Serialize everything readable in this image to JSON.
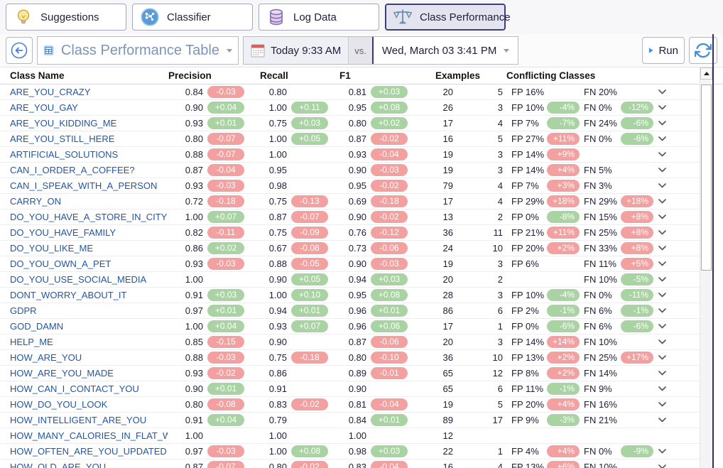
{
  "tabs": [
    {
      "label": "Suggestions",
      "icon": "lightbulb-icon",
      "selected": false
    },
    {
      "label": "Classifier",
      "icon": "network-icon",
      "selected": false
    },
    {
      "label": "Log Data",
      "icon": "database-icon",
      "selected": false
    },
    {
      "label": "Class Performance",
      "icon": "scales-icon",
      "selected": true
    }
  ],
  "toolbar": {
    "view_label": "Class Performance Table",
    "date_left": "Today 9:33 AM",
    "vs_label": "vs.",
    "date_right": "Wed, March 03 3:41 PM",
    "run_label": "Run"
  },
  "colors": {
    "badge_red": "#f2a0a0",
    "badge_green": "#a9d3a3",
    "link_blue": "#2057a7",
    "accent_blue": "#4a90d9",
    "selected_tab_bg": "#e4e3f0",
    "window_border": "#2e2e70"
  },
  "table": {
    "columns": [
      "Class Name",
      "Precision",
      "Recall",
      "F1",
      "Examples",
      "Conflicting Classes"
    ],
    "rows": [
      {
        "name": "ARE_YOU_CRAZY",
        "precision": "0.84",
        "precision_delta": "-0.03",
        "recall": "0.80",
        "recall_delta": null,
        "f1": "0.81",
        "f1_delta": "+0.03",
        "examples": "20",
        "conflicts": "5",
        "fp": "FP 16%",
        "fp_delta": null,
        "fn": "FN 20%",
        "fn_delta": null,
        "chevron": true
      },
      {
        "name": "ARE_YOU_GAY",
        "precision": "0.90",
        "precision_delta": "+0.04",
        "recall": "1.00",
        "recall_delta": "+0.11",
        "f1": "0.95",
        "f1_delta": "+0.08",
        "examples": "26",
        "conflicts": "3",
        "fp": "FP 10%",
        "fp_delta": "-4%",
        "fn": "FN 0%",
        "fn_delta": "-12%",
        "chevron": true
      },
      {
        "name": "ARE_YOU_KIDDING_ME",
        "precision": "0.93",
        "precision_delta": "+0.01",
        "recall": "0.75",
        "recall_delta": "+0.03",
        "f1": "0.80",
        "f1_delta": "+0.02",
        "examples": "17",
        "conflicts": "4",
        "fp": "FP 7%",
        "fp_delta": "-7%",
        "fn": "FN 24%",
        "fn_delta": "-6%",
        "chevron": true
      },
      {
        "name": "ARE_YOU_STILL_HERE",
        "precision": "0.80",
        "precision_delta": "-0.07",
        "recall": "1.00",
        "recall_delta": "+0.05",
        "f1": "0.87",
        "f1_delta": "-0.02",
        "examples": "16",
        "conflicts": "5",
        "fp": "FP 27%",
        "fp_delta": "+11%",
        "fn": "FN 0%",
        "fn_delta": "-6%",
        "chevron": true
      },
      {
        "name": "ARTIFICIAL_SOLUTIONS",
        "precision": "0.88",
        "precision_delta": "-0.07",
        "recall": "1.00",
        "recall_delta": null,
        "f1": "0.93",
        "f1_delta": "-0.04",
        "examples": "19",
        "conflicts": "3",
        "fp": "FP 14%",
        "fp_delta": "+9%",
        "fn": null,
        "fn_delta": null,
        "chevron": true
      },
      {
        "name": "CAN_I_ORDER_A_COFFEE?",
        "precision": "0.87",
        "precision_delta": "-0.04",
        "recall": "0.95",
        "recall_delta": null,
        "f1": "0.90",
        "f1_delta": "-0.03",
        "examples": "19",
        "conflicts": "3",
        "fp": "FP 14%",
        "fp_delta": "+4%",
        "fn": "FN 5%",
        "fn_delta": null,
        "chevron": true
      },
      {
        "name": "CAN_I_SPEAK_WITH_A_PERSON",
        "precision": "0.93",
        "precision_delta": "-0.03",
        "recall": "0.98",
        "recall_delta": null,
        "f1": "0.95",
        "f1_delta": "-0.02",
        "examples": "79",
        "conflicts": "4",
        "fp": "FP 7%",
        "fp_delta": "+3%",
        "fn": "FN 3%",
        "fn_delta": null,
        "chevron": true
      },
      {
        "name": "CARRY_ON",
        "precision": "0.72",
        "precision_delta": "-0.18",
        "recall": "0.75",
        "recall_delta": "-0.13",
        "f1": "0.69",
        "f1_delta": "-0.18",
        "examples": "17",
        "conflicts": "4",
        "fp": "FP 29%",
        "fp_delta": "+18%",
        "fn": "FN 29%",
        "fn_delta": "+18%",
        "chevron": true
      },
      {
        "name": "DO_YOU_HAVE_A_STORE_IN_CITY?",
        "precision": "1.00",
        "precision_delta": "+0.07",
        "recall": "0.87",
        "recall_delta": "-0.07",
        "f1": "0.90",
        "f1_delta": "-0.02",
        "examples": "13",
        "conflicts": "2",
        "fp": "FP 0%",
        "fp_delta": "-8%",
        "fn": "FN 15%",
        "fn_delta": "+8%",
        "chevron": true
      },
      {
        "name": "DO_YOU_HAVE_FAMILY",
        "precision": "0.82",
        "precision_delta": "-0.11",
        "recall": "0.75",
        "recall_delta": "-0.09",
        "f1": "0.76",
        "f1_delta": "-0.12",
        "examples": "36",
        "conflicts": "11",
        "fp": "FP 21%",
        "fp_delta": "+11%",
        "fn": "FN 25%",
        "fn_delta": "+8%",
        "chevron": true
      },
      {
        "name": "DO_YOU_LIKE_ME",
        "precision": "0.86",
        "precision_delta": "+0.02",
        "recall": "0.67",
        "recall_delta": "-0.08",
        "f1": "0.73",
        "f1_delta": "-0.06",
        "examples": "24",
        "conflicts": "10",
        "fp": "FP 20%",
        "fp_delta": "+2%",
        "fn": "FN 33%",
        "fn_delta": "+8%",
        "chevron": true
      },
      {
        "name": "DO_YOU_OWN_A_PET",
        "precision": "0.93",
        "precision_delta": "-0.03",
        "recall": "0.88",
        "recall_delta": "-0.05",
        "f1": "0.90",
        "f1_delta": "-0.03",
        "examples": "19",
        "conflicts": "3",
        "fp": "FP 6%",
        "fp_delta": null,
        "fn": "FN 11%",
        "fn_delta": "+5%",
        "chevron": true
      },
      {
        "name": "DO_YOU_USE_SOCIAL_MEDIA",
        "precision": "1.00",
        "precision_delta": null,
        "recall": "0.90",
        "recall_delta": "+0.05",
        "f1": "0.94",
        "f1_delta": "+0.03",
        "examples": "20",
        "conflicts": "2",
        "fp": null,
        "fp_delta": null,
        "fn": "FN 10%",
        "fn_delta": "-5%",
        "chevron": true
      },
      {
        "name": "DONT_WORRY_ABOUT_IT",
        "precision": "0.91",
        "precision_delta": "+0.03",
        "recall": "1.00",
        "recall_delta": "+0.10",
        "f1": "0.95",
        "f1_delta": "+0.08",
        "examples": "28",
        "conflicts": "3",
        "fp": "FP 10%",
        "fp_delta": "-4%",
        "fn": "FN 0%",
        "fn_delta": "-11%",
        "chevron": true
      },
      {
        "name": "GDPR",
        "precision": "0.97",
        "precision_delta": "+0.01",
        "recall": "0.94",
        "recall_delta": "+0.01",
        "f1": "0.96",
        "f1_delta": "+0.01",
        "examples": "86",
        "conflicts": "6",
        "fp": "FP 2%",
        "fp_delta": "-1%",
        "fn": "FN 6%",
        "fn_delta": "-1%",
        "chevron": true
      },
      {
        "name": "GOD_DAMN",
        "precision": "1.00",
        "precision_delta": "+0.04",
        "recall": "0.93",
        "recall_delta": "+0.07",
        "f1": "0.96",
        "f1_delta": "+0.06",
        "examples": "17",
        "conflicts": "1",
        "fp": "FP 0%",
        "fp_delta": "-6%",
        "fn": "FN 6%",
        "fn_delta": "-6%",
        "chevron": true
      },
      {
        "name": "HELP_ME",
        "precision": "0.85",
        "precision_delta": "-0.15",
        "recall": "0.90",
        "recall_delta": null,
        "f1": "0.87",
        "f1_delta": "-0.06",
        "examples": "20",
        "conflicts": "3",
        "fp": "FP 14%",
        "fp_delta": "+14%",
        "fn": "FN 10%",
        "fn_delta": null,
        "chevron": true
      },
      {
        "name": "HOW_ARE_YOU",
        "precision": "0.88",
        "precision_delta": "-0.03",
        "recall": "0.75",
        "recall_delta": "-0.18",
        "f1": "0.80",
        "f1_delta": "-0.10",
        "examples": "36",
        "conflicts": "10",
        "fp": "FP 13%",
        "fp_delta": "+2%",
        "fn": "FN 25%",
        "fn_delta": "+17%",
        "chevron": true
      },
      {
        "name": "HOW_ARE_YOU_MADE",
        "precision": "0.93",
        "precision_delta": "-0.02",
        "recall": "0.86",
        "recall_delta": null,
        "f1": "0.89",
        "f1_delta": "-0.01",
        "examples": "65",
        "conflicts": "12",
        "fp": "FP 8%",
        "fp_delta": "+2%",
        "fn": "FN 14%",
        "fn_delta": null,
        "chevron": true
      },
      {
        "name": "HOW_CAN_I_CONTACT_YOU",
        "precision": "0.90",
        "precision_delta": "+0.01",
        "recall": "0.91",
        "recall_delta": null,
        "f1": "0.90",
        "f1_delta": null,
        "examples": "65",
        "conflicts": "6",
        "fp": "FP 11%",
        "fp_delta": "-1%",
        "fn": "FN 9%",
        "fn_delta": null,
        "chevron": true
      },
      {
        "name": "HOW_DO_YOU_LOOK",
        "precision": "0.80",
        "precision_delta": "-0.08",
        "recall": "0.83",
        "recall_delta": "-0.02",
        "f1": "0.81",
        "f1_delta": "-0.04",
        "examples": "19",
        "conflicts": "5",
        "fp": "FP 20%",
        "fp_delta": "+4%",
        "fn": "FN 16%",
        "fn_delta": null,
        "chevron": true
      },
      {
        "name": "HOW_INTELLIGENT_ARE_YOU",
        "precision": "0.91",
        "precision_delta": "+0.04",
        "recall": "0.79",
        "recall_delta": null,
        "f1": "0.84",
        "f1_delta": "+0.01",
        "examples": "89",
        "conflicts": "17",
        "fp": "FP 9%",
        "fp_delta": "-3%",
        "fn": "FN 21%",
        "fn_delta": null,
        "chevron": true
      },
      {
        "name": "HOW_MANY_CALORIES_IN_FLAT_WHITE",
        "precision": "1.00",
        "precision_delta": null,
        "recall": "1.00",
        "recall_delta": null,
        "f1": "1.00",
        "f1_delta": null,
        "examples": "12",
        "conflicts": null,
        "fp": null,
        "fp_delta": null,
        "fn": null,
        "fn_delta": null,
        "chevron": false
      },
      {
        "name": "HOW_OFTEN_ARE_YOU_UPDATED",
        "precision": "0.97",
        "precision_delta": "-0.03",
        "recall": "1.00",
        "recall_delta": "+0.08",
        "f1": "0.98",
        "f1_delta": "+0.03",
        "examples": "22",
        "conflicts": "1",
        "fp": "FP 4%",
        "fp_delta": "+4%",
        "fn": "FN 0%",
        "fn_delta": "-9%",
        "chevron": true
      },
      {
        "name": "HOW_OLD_ARE_YOU",
        "precision": "0.87",
        "precision_delta": "-0.07",
        "recall": "0.80",
        "recall_delta": "-0.02",
        "f1": "0.83",
        "f1_delta": "-0.04",
        "examples": "16",
        "conflicts": "4",
        "fp": "FP 13%",
        "fp_delta": "+6%",
        "fn": "FN 10%",
        "fn_delta": null,
        "chevron": true
      }
    ]
  }
}
